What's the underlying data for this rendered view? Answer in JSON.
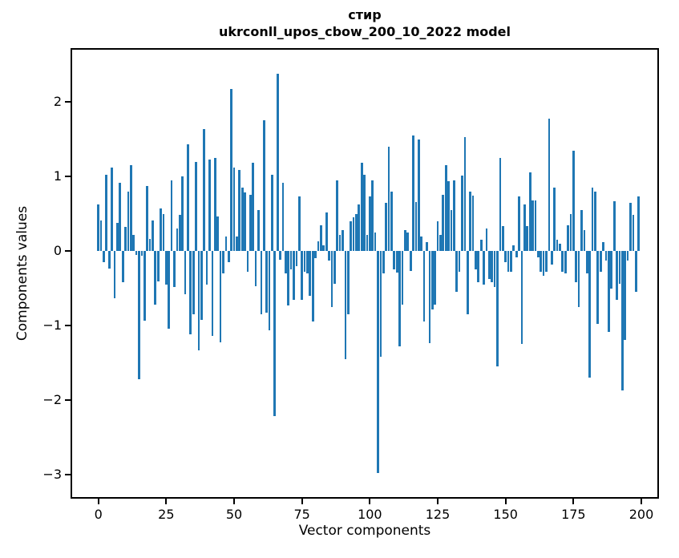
{
  "figure": {
    "title_line1": "стир",
    "title_line2": "ukrconll_upos_cbow_200_10_2022 model",
    "xlabel": "Vector components",
    "ylabel": "Components values"
  },
  "chart_data": {
    "type": "bar",
    "title": "стир",
    "subtitle": "ukrconll_upos_cbow_200_10_2022 model",
    "xlabel": "Vector components",
    "ylabel": "Components values",
    "bar_color": "#1f77b4",
    "grid": false,
    "legend": "none",
    "n_bars": 200,
    "x_range": [
      0,
      199
    ],
    "xlim": [
      -9.65,
      205.9
    ],
    "ylim": [
      -3.3,
      2.7
    ],
    "xticks": {
      "values": [
        0,
        25,
        50,
        75,
        100,
        125,
        150,
        175,
        200
      ],
      "labels": [
        "0",
        "25",
        "50",
        "75",
        "100",
        "125",
        "150",
        "175",
        "200"
      ]
    },
    "yticks": {
      "values": [
        2,
        1,
        0,
        -1,
        -2,
        -3
      ],
      "labels": [
        "2",
        "1",
        "0",
        "−1",
        "−2",
        "−3"
      ]
    },
    "values": [
      0.62,
      0.41,
      -0.15,
      1.02,
      -0.24,
      1.12,
      -0.63,
      0.38,
      0.91,
      -0.42,
      0.32,
      0.8,
      1.15,
      0.22,
      -0.05,
      -1.72,
      -0.06,
      -0.93,
      0.87,
      0.16,
      0.41,
      -0.72,
      -0.41,
      0.57,
      0.5,
      -0.45,
      -1.04,
      0.95,
      -0.48,
      0.3,
      0.48,
      1.0,
      -0.58,
      1.43,
      -1.12,
      -0.85,
      1.19,
      -1.33,
      -0.92,
      1.64,
      -0.45,
      1.23,
      -1.14,
      1.25,
      0.46,
      -1.22,
      -0.3,
      0.2,
      -0.15,
      2.17,
      1.12,
      0.2,
      1.09,
      0.85,
      0.79,
      -0.28,
      0.75,
      1.18,
      -0.47,
      0.55,
      -0.85,
      1.75,
      -0.83,
      -1.06,
      1.02,
      -2.21,
      2.38,
      -0.12,
      0.91,
      -0.3,
      -0.73,
      -0.25,
      -0.65,
      -0.2,
      0.73,
      -0.65,
      -0.28,
      -0.3,
      -0.6,
      -0.95,
      -0.1,
      0.13,
      0.35,
      0.08,
      0.52,
      -0.13,
      -0.75,
      -0.44,
      0.95,
      0.22,
      0.28,
      -1.45,
      -0.85,
      0.4,
      0.45,
      0.5,
      0.62,
      1.18,
      1.02,
      0.22,
      0.73,
      0.95,
      0.25,
      -2.98,
      -1.42,
      -0.3,
      0.65,
      1.4,
      0.8,
      -0.25,
      -0.29,
      -1.28,
      -0.72,
      0.28,
      0.25,
      -0.27,
      1.55,
      0.66,
      1.5,
      0.19,
      -0.94,
      0.12,
      -1.24,
      -0.78,
      -0.72,
      0.4,
      0.22,
      0.75,
      1.15,
      0.94,
      0.55,
      0.95,
      -0.55,
      -0.28,
      1.01,
      1.53,
      -0.85,
      0.8,
      0.74,
      -0.25,
      -0.42,
      0.15,
      -0.45,
      0.3,
      -0.38,
      -0.42,
      -0.48,
      -1.55,
      1.25,
      0.33,
      -0.15,
      -0.28,
      -0.28,
      0.08,
      -0.08,
      0.73,
      -1.25,
      0.62,
      0.33,
      1.05,
      0.68,
      0.68,
      -0.08,
      -0.28,
      -0.33,
      -0.28,
      1.78,
      -0.18,
      0.85,
      0.15,
      0.1,
      -0.28,
      -0.3,
      0.35,
      0.5,
      1.35,
      -0.42,
      -0.75,
      0.55,
      0.28,
      -0.3,
      -1.7,
      0.85,
      0.8,
      -0.98,
      -0.28,
      0.12,
      -0.13,
      -1.08,
      -0.5,
      0.67,
      -0.65,
      -0.44,
      -1.87,
      -1.19,
      -0.13,
      0.65,
      0.48,
      -0.55,
      0.73
    ]
  }
}
